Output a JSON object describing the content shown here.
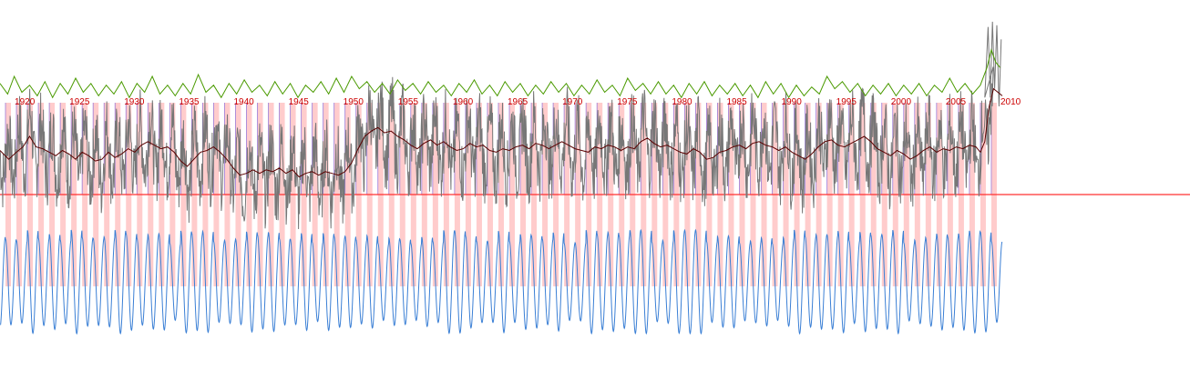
{
  "chart_data": {
    "type": "line",
    "x_start": 1918.5,
    "x_end": 2010.5,
    "x_tick_labels": [
      "1920",
      "1925",
      "1930",
      "1935",
      "1940",
      "1945",
      "1950",
      "1955",
      "1960",
      "1965",
      "1970",
      "1975",
      "1980",
      "1985",
      "1990",
      "1995",
      "2000",
      "2005",
      "2010"
    ],
    "band_interval_years": 1,
    "band_width_years": 0.5,
    "series": [
      {
        "key": "upper-envelope",
        "color": "#4a9a00",
        "points": [
          [
            1918.5,
            0.63
          ],
          [
            1919.2,
            0.57
          ],
          [
            1919.8,
            0.67
          ],
          [
            1920.5,
            0.58
          ],
          [
            1921.2,
            0.62
          ],
          [
            1921.9,
            0.56
          ],
          [
            1922.6,
            0.64
          ],
          [
            1923.3,
            0.55
          ],
          [
            1924.0,
            0.63
          ],
          [
            1924.7,
            0.57
          ],
          [
            1925.4,
            0.66
          ],
          [
            1926.1,
            0.58
          ],
          [
            1926.8,
            0.63
          ],
          [
            1927.5,
            0.56
          ],
          [
            1928.2,
            0.62
          ],
          [
            1928.9,
            0.57
          ],
          [
            1929.6,
            0.64
          ],
          [
            1930.3,
            0.55
          ],
          [
            1931.0,
            0.63
          ],
          [
            1931.7,
            0.58
          ],
          [
            1932.4,
            0.67
          ],
          [
            1933.1,
            0.57
          ],
          [
            1933.8,
            0.62
          ],
          [
            1934.5,
            0.56
          ],
          [
            1935.2,
            0.63
          ],
          [
            1935.9,
            0.57
          ],
          [
            1936.6,
            0.68
          ],
          [
            1937.3,
            0.58
          ],
          [
            1938.0,
            0.62
          ],
          [
            1938.7,
            0.55
          ],
          [
            1939.4,
            0.63
          ],
          [
            1940.1,
            0.57
          ],
          [
            1940.8,
            0.65
          ],
          [
            1941.5,
            0.58
          ],
          [
            1942.2,
            0.62
          ],
          [
            1942.9,
            0.56
          ],
          [
            1943.6,
            0.64
          ],
          [
            1944.3,
            0.57
          ],
          [
            1945.0,
            0.63
          ],
          [
            1945.7,
            0.55
          ],
          [
            1946.4,
            0.62
          ],
          [
            1947.1,
            0.58
          ],
          [
            1947.8,
            0.64
          ],
          [
            1948.5,
            0.57
          ],
          [
            1949.2,
            0.66
          ],
          [
            1949.9,
            0.58
          ],
          [
            1950.6,
            0.67
          ],
          [
            1951.3,
            0.6
          ],
          [
            1952.0,
            0.64
          ],
          [
            1952.7,
            0.58
          ],
          [
            1953.4,
            0.63
          ],
          [
            1954.1,
            0.57
          ],
          [
            1954.8,
            0.65
          ],
          [
            1955.5,
            0.59
          ],
          [
            1956.2,
            0.63
          ],
          [
            1956.9,
            0.57
          ],
          [
            1957.6,
            0.64
          ],
          [
            1958.3,
            0.58
          ],
          [
            1959.0,
            0.62
          ],
          [
            1959.7,
            0.56
          ],
          [
            1960.4,
            0.63
          ],
          [
            1961.1,
            0.58
          ],
          [
            1961.8,
            0.65
          ],
          [
            1962.5,
            0.57
          ],
          [
            1963.2,
            0.62
          ],
          [
            1963.9,
            0.56
          ],
          [
            1964.6,
            0.64
          ],
          [
            1965.3,
            0.58
          ],
          [
            1966.0,
            0.63
          ],
          [
            1966.7,
            0.56
          ],
          [
            1967.4,
            0.62
          ],
          [
            1968.1,
            0.57
          ],
          [
            1968.8,
            0.64
          ],
          [
            1969.5,
            0.58
          ],
          [
            1970.2,
            0.63
          ],
          [
            1970.9,
            0.56
          ],
          [
            1971.6,
            0.62
          ],
          [
            1972.3,
            0.57
          ],
          [
            1973.0,
            0.65
          ],
          [
            1973.7,
            0.58
          ],
          [
            1974.4,
            0.62
          ],
          [
            1975.1,
            0.56
          ],
          [
            1975.8,
            0.66
          ],
          [
            1976.5,
            0.59
          ],
          [
            1977.2,
            0.63
          ],
          [
            1977.9,
            0.57
          ],
          [
            1978.6,
            0.64
          ],
          [
            1979.3,
            0.57
          ],
          [
            1980.0,
            0.62
          ],
          [
            1980.7,
            0.55
          ],
          [
            1981.4,
            0.63
          ],
          [
            1982.1,
            0.57
          ],
          [
            1982.8,
            0.64
          ],
          [
            1983.5,
            0.56
          ],
          [
            1984.2,
            0.62
          ],
          [
            1984.9,
            0.57
          ],
          [
            1985.6,
            0.63
          ],
          [
            1986.3,
            0.56
          ],
          [
            1987.0,
            0.62
          ],
          [
            1987.7,
            0.55
          ],
          [
            1988.4,
            0.64
          ],
          [
            1989.1,
            0.57
          ],
          [
            1989.8,
            0.63
          ],
          [
            1990.5,
            0.55
          ],
          [
            1991.2,
            0.62
          ],
          [
            1991.9,
            0.56
          ],
          [
            1992.6,
            0.61
          ],
          [
            1993.3,
            0.57
          ],
          [
            1994.0,
            0.67
          ],
          [
            1994.7,
            0.6
          ],
          [
            1995.4,
            0.64
          ],
          [
            1996.1,
            0.58
          ],
          [
            1996.8,
            0.63
          ],
          [
            1997.5,
            0.56
          ],
          [
            1998.2,
            0.62
          ],
          [
            1998.9,
            0.57
          ],
          [
            1999.6,
            0.63
          ],
          [
            2000.3,
            0.56
          ],
          [
            2001.0,
            0.62
          ],
          [
            2001.7,
            0.57
          ],
          [
            2002.4,
            0.63
          ],
          [
            2003.1,
            0.56
          ],
          [
            2003.8,
            0.62
          ],
          [
            2004.5,
            0.58
          ],
          [
            2005.2,
            0.66
          ],
          [
            2005.9,
            0.58
          ],
          [
            2006.6,
            0.63
          ],
          [
            2007.3,
            0.57
          ],
          [
            2008.0,
            0.62
          ],
          [
            2008.6,
            0.72
          ],
          [
            2009.0,
            0.82
          ],
          [
            2009.4,
            0.75
          ],
          [
            2009.8,
            0.72
          ]
        ]
      },
      {
        "key": "raw-value",
        "color": "#777777",
        "seed": 7,
        "amplitude": 0.42,
        "base": 0.2
      },
      {
        "key": "running-mean",
        "color": "#5a0000",
        "points": [
          [
            1918.5,
            0.25
          ],
          [
            1919.3,
            0.2
          ],
          [
            1920.0,
            0.24
          ],
          [
            1920.6,
            0.27
          ],
          [
            1921.2,
            0.33
          ],
          [
            1921.8,
            0.27
          ],
          [
            1922.4,
            0.26
          ],
          [
            1923.0,
            0.24
          ],
          [
            1923.6,
            0.22
          ],
          [
            1924.2,
            0.25
          ],
          [
            1924.8,
            0.23
          ],
          [
            1925.4,
            0.2
          ],
          [
            1926.0,
            0.24
          ],
          [
            1926.6,
            0.22
          ],
          [
            1927.2,
            0.19
          ],
          [
            1927.8,
            0.2
          ],
          [
            1928.4,
            0.24
          ],
          [
            1929.0,
            0.21
          ],
          [
            1929.6,
            0.23
          ],
          [
            1930.2,
            0.26
          ],
          [
            1930.8,
            0.24
          ],
          [
            1931.4,
            0.28
          ],
          [
            1932.0,
            0.3
          ],
          [
            1932.6,
            0.28
          ],
          [
            1933.2,
            0.26
          ],
          [
            1933.8,
            0.27
          ],
          [
            1934.4,
            0.24
          ],
          [
            1935.0,
            0.19
          ],
          [
            1935.6,
            0.16
          ],
          [
            1936.2,
            0.2
          ],
          [
            1936.8,
            0.24
          ],
          [
            1937.4,
            0.25
          ],
          [
            1938.0,
            0.27
          ],
          [
            1938.6,
            0.24
          ],
          [
            1939.2,
            0.2
          ],
          [
            1939.8,
            0.15
          ],
          [
            1940.4,
            0.11
          ],
          [
            1941.0,
            0.12
          ],
          [
            1941.6,
            0.14
          ],
          [
            1942.2,
            0.12
          ],
          [
            1942.8,
            0.14
          ],
          [
            1943.4,
            0.13
          ],
          [
            1944.0,
            0.15
          ],
          [
            1944.6,
            0.12
          ],
          [
            1945.2,
            0.14
          ],
          [
            1945.8,
            0.1
          ],
          [
            1946.4,
            0.12
          ],
          [
            1947.0,
            0.13
          ],
          [
            1947.6,
            0.11
          ],
          [
            1948.2,
            0.13
          ],
          [
            1948.8,
            0.12
          ],
          [
            1949.4,
            0.11
          ],
          [
            1950.0,
            0.13
          ],
          [
            1950.6,
            0.18
          ],
          [
            1951.2,
            0.26
          ],
          [
            1951.8,
            0.33
          ],
          [
            1952.4,
            0.36
          ],
          [
            1953.0,
            0.38
          ],
          [
            1953.6,
            0.35
          ],
          [
            1954.2,
            0.36
          ],
          [
            1954.8,
            0.33
          ],
          [
            1955.4,
            0.31
          ],
          [
            1956.0,
            0.28
          ],
          [
            1956.6,
            0.26
          ],
          [
            1957.2,
            0.29
          ],
          [
            1957.8,
            0.31
          ],
          [
            1958.4,
            0.28
          ],
          [
            1959.0,
            0.3
          ],
          [
            1959.6,
            0.27
          ],
          [
            1960.2,
            0.25
          ],
          [
            1960.8,
            0.26
          ],
          [
            1961.4,
            0.29
          ],
          [
            1962.0,
            0.27
          ],
          [
            1962.6,
            0.28
          ],
          [
            1963.2,
            0.25
          ],
          [
            1963.8,
            0.24
          ],
          [
            1964.4,
            0.26
          ],
          [
            1965.0,
            0.25
          ],
          [
            1965.6,
            0.27
          ],
          [
            1966.2,
            0.28
          ],
          [
            1966.8,
            0.26
          ],
          [
            1967.4,
            0.29
          ],
          [
            1968.0,
            0.28
          ],
          [
            1968.6,
            0.26
          ],
          [
            1969.2,
            0.28
          ],
          [
            1969.8,
            0.3
          ],
          [
            1970.4,
            0.28
          ],
          [
            1971.0,
            0.26
          ],
          [
            1971.6,
            0.25
          ],
          [
            1972.2,
            0.24
          ],
          [
            1972.8,
            0.27
          ],
          [
            1973.4,
            0.26
          ],
          [
            1974.0,
            0.28
          ],
          [
            1974.6,
            0.27
          ],
          [
            1975.2,
            0.25
          ],
          [
            1975.8,
            0.27
          ],
          [
            1976.4,
            0.26
          ],
          [
            1977.0,
            0.3
          ],
          [
            1977.6,
            0.32
          ],
          [
            1978.2,
            0.29
          ],
          [
            1978.8,
            0.27
          ],
          [
            1979.4,
            0.28
          ],
          [
            1980.0,
            0.26
          ],
          [
            1980.6,
            0.24
          ],
          [
            1981.2,
            0.23
          ],
          [
            1981.8,
            0.26
          ],
          [
            1982.4,
            0.24
          ],
          [
            1983.0,
            0.2
          ],
          [
            1983.6,
            0.21
          ],
          [
            1984.2,
            0.24
          ],
          [
            1984.8,
            0.25
          ],
          [
            1985.4,
            0.27
          ],
          [
            1986.0,
            0.28
          ],
          [
            1986.6,
            0.26
          ],
          [
            1987.2,
            0.29
          ],
          [
            1987.8,
            0.3
          ],
          [
            1988.4,
            0.28
          ],
          [
            1989.0,
            0.27
          ],
          [
            1989.6,
            0.25
          ],
          [
            1990.2,
            0.27
          ],
          [
            1990.8,
            0.24
          ],
          [
            1991.4,
            0.22
          ],
          [
            1992.0,
            0.2
          ],
          [
            1992.6,
            0.23
          ],
          [
            1993.2,
            0.27
          ],
          [
            1993.8,
            0.3
          ],
          [
            1994.4,
            0.31
          ],
          [
            1995.0,
            0.28
          ],
          [
            1995.6,
            0.27
          ],
          [
            1996.2,
            0.29
          ],
          [
            1996.8,
            0.31
          ],
          [
            1997.4,
            0.33
          ],
          [
            1998.0,
            0.3
          ],
          [
            1998.6,
            0.26
          ],
          [
            1999.2,
            0.24
          ],
          [
            1999.8,
            0.22
          ],
          [
            2000.4,
            0.25
          ],
          [
            2001.0,
            0.23
          ],
          [
            2001.6,
            0.2
          ],
          [
            2002.2,
            0.22
          ],
          [
            2002.8,
            0.25
          ],
          [
            2003.4,
            0.27
          ],
          [
            2004.0,
            0.24
          ],
          [
            2004.6,
            0.26
          ],
          [
            2005.2,
            0.25
          ],
          [
            2005.8,
            0.27
          ],
          [
            2006.4,
            0.26
          ],
          [
            2007.0,
            0.28
          ],
          [
            2007.6,
            0.27
          ],
          [
            2008.0,
            0.24
          ],
          [
            2008.4,
            0.3
          ],
          [
            2008.8,
            0.5
          ],
          [
            2009.2,
            0.6
          ],
          [
            2009.6,
            0.58
          ],
          [
            2010.0,
            0.56
          ]
        ]
      },
      {
        "key": "seasonal-cycle",
        "color": "#3a7fd5",
        "period_years": 1,
        "amplitude_min": 0.35,
        "amplitude_max": 0.48
      }
    ]
  }
}
